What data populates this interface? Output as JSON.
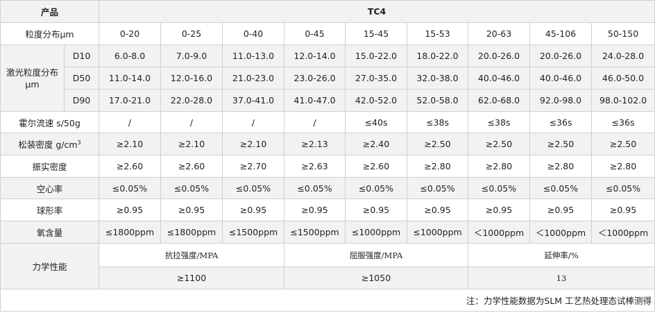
{
  "header": {
    "product_label": "产品",
    "product_value": "TC4"
  },
  "ranges": {
    "label": "粒度分布μm",
    "values": [
      "0-20",
      "0-25",
      "0-40",
      "0-45",
      "15-45",
      "15-53",
      "20-63",
      "45-106",
      "50-150"
    ]
  },
  "laser": {
    "label_line1": "激光粒度分布",
    "label_line2": "μm",
    "rows": [
      {
        "name": "D10",
        "values": [
          "6.0-8.0",
          "7.0-9.0",
          "11.0-13.0",
          "12.0-14.0",
          "15.0-22.0",
          "18.0-22.0",
          "20.0-26.0",
          "20.0-26.0",
          "24.0-28.0"
        ]
      },
      {
        "name": "D50",
        "values": [
          "11.0-14.0",
          "12.0-16.0",
          "21.0-23.0",
          "23.0-26.0",
          "27.0-35.0",
          "32.0-38.0",
          "40.0-46.0",
          "40.0-46.0",
          "46.0-50.0"
        ]
      },
      {
        "name": "D90",
        "values": [
          "17.0-21.0",
          "22.0-28.0",
          "37.0-41.0",
          "41.0-47.0",
          "42.0-52.0",
          "52.0-58.0",
          "62.0-68.0",
          "92.0-98.0",
          "98.0-102.0"
        ]
      }
    ]
  },
  "props": [
    {
      "label": "霍尔流速 s/50g",
      "values": [
        "/",
        "/",
        "/",
        "/",
        "≤40s",
        "≤38s",
        "≤38s",
        "≤36s",
        "≤36s"
      ]
    },
    {
      "label_main": "松装密度 g/cm",
      "label_sup": "3",
      "values": [
        "≥2.10",
        "≥2.10",
        "≥2.10",
        "≥2.13",
        "≥2.40",
        "≥2.50",
        "≥2.50",
        "≥2.50",
        "≥2.50"
      ]
    },
    {
      "label": "振实密度",
      "values": [
        "≥2.60",
        "≥2.60",
        "≥2.70",
        "≥2.63",
        "≥2.60",
        "≥2.80",
        "≥2.80",
        "≥2.80",
        "≥2.80"
      ]
    },
    {
      "label": "空心率",
      "values": [
        "≤0.05%",
        "≤0.05%",
        "≤0.05%",
        "≤0.05%",
        "≤0.05%",
        "≤0.05%",
        "≤0.05%",
        "≤0.05%",
        "≤0.05%"
      ]
    },
    {
      "label": "球形率",
      "values": [
        "≥0.95",
        "≥0.95",
        "≥0.95",
        "≥0.95",
        "≥0.95",
        "≥0.95",
        "≥0.95",
        "≥0.95",
        "≥0.95"
      ]
    },
    {
      "label": "氧含量",
      "values": [
        "≤1800ppm",
        "≤1800ppm",
        "≤1500ppm",
        "≤1500ppm",
        "≤1000ppm",
        "≤1000ppm",
        "＜1000ppm",
        "＜1000ppm",
        "＜1000ppm"
      ]
    }
  ],
  "mechanical": {
    "label": "力学性能",
    "headers": [
      "抗拉强度/MPA",
      "屈服强度/MPA",
      "延伸率/%"
    ],
    "values": [
      "≥1100",
      "≥1050",
      "13"
    ]
  },
  "note": "注：力学性能数据为SLM 工艺热处理态试棒测得"
}
